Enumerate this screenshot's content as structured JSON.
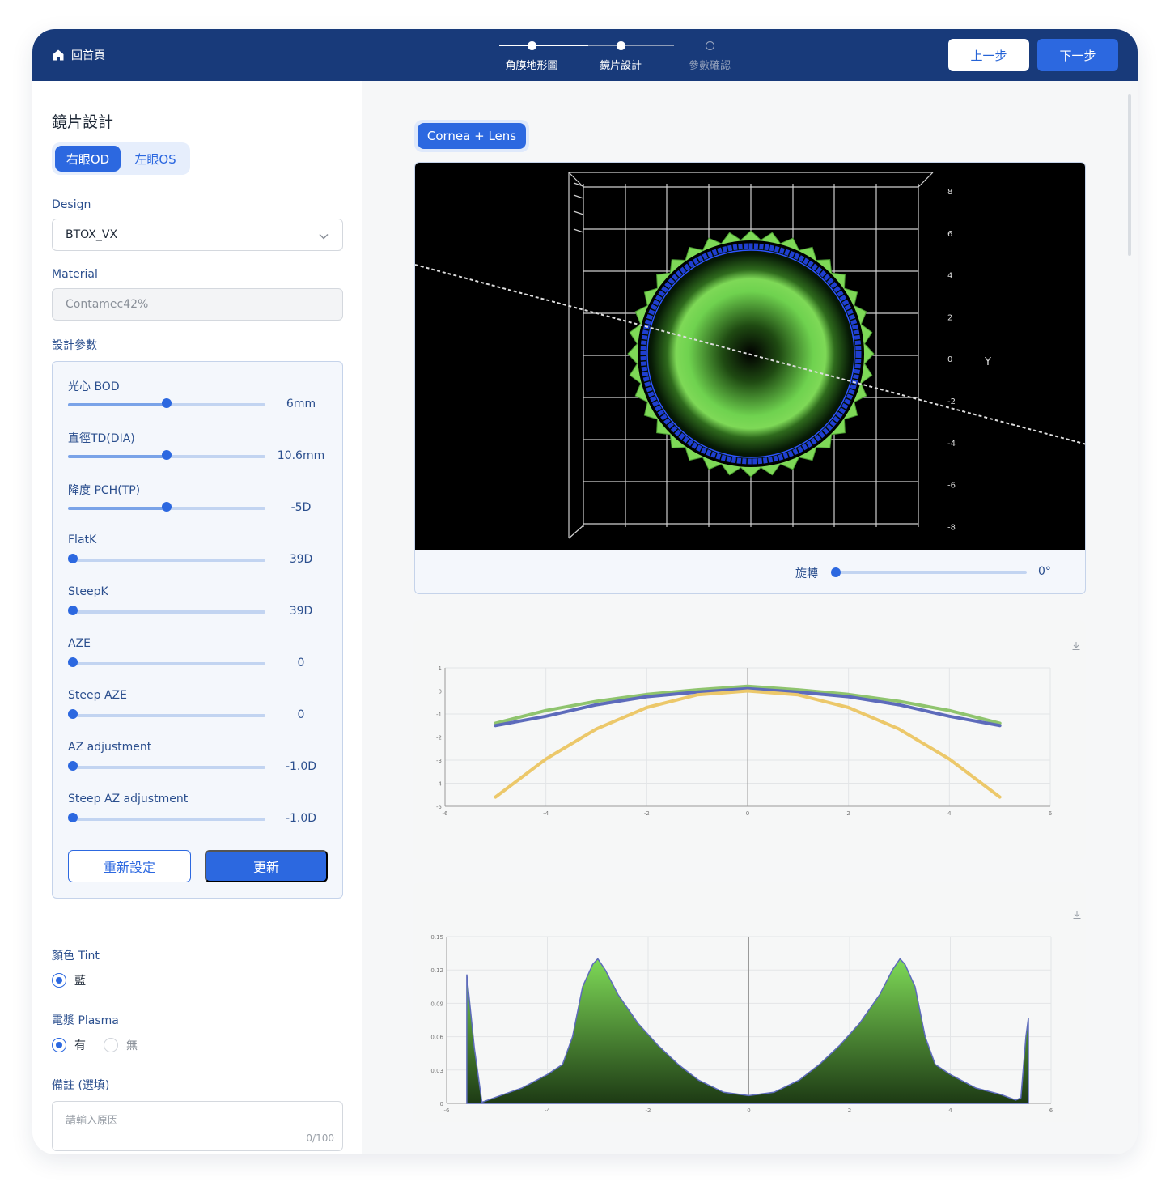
{
  "header": {
    "home_label": "回首頁",
    "steps": [
      {
        "label": "角膜地形圖",
        "state": "done"
      },
      {
        "label": "鏡片設計",
        "state": "current"
      },
      {
        "label": "參數確認",
        "state": "todo"
      }
    ],
    "prev_label": "上一步",
    "next_label": "下一步"
  },
  "left": {
    "title": "鏡片設計",
    "eye_tabs": [
      {
        "label": "右眼OD",
        "active": true
      },
      {
        "label": "左眼OS",
        "active": false
      }
    ],
    "design_label": "Design",
    "design_value": "BTOX_VX",
    "material_label": "Material",
    "material_value": "Contamec42%",
    "params_label": "設計參數",
    "params": [
      {
        "name": "光心 BOD",
        "value": "6mm",
        "fraction": 0.5
      },
      {
        "name": "直徑TD(DIA)",
        "value": "10.6mm",
        "fraction": 0.5
      },
      {
        "name": "降度 PCH(TP)",
        "value": "-5D",
        "fraction": 0.5
      },
      {
        "name": "FlatK",
        "value": "39D",
        "fraction": 0.0
      },
      {
        "name": "SteepK",
        "value": "39D",
        "fraction": 0.0
      },
      {
        "name": "AZE",
        "value": "0",
        "fraction": 0.0
      },
      {
        "name": "Steep AZE",
        "value": "0",
        "fraction": 0.0
      },
      {
        "name": "AZ adjustment",
        "value": "-1.0D",
        "fraction": 0.0
      },
      {
        "name": "Steep AZ adjustment",
        "value": "-1.0D",
        "fraction": 0.0
      }
    ],
    "reset_label": "重新設定",
    "update_label": "更新",
    "tint_label": "顏色 Tint",
    "tint_option": "藍",
    "plasma_label": "電漿 Plasma",
    "plasma_yes": "有",
    "plasma_no": "無",
    "notes_label": "備註 (選填)",
    "notes_placeholder": "請輸入原因",
    "notes_count": "0/100"
  },
  "viewer": {
    "tab_label": "Cornea + Lens",
    "y_axis_label": "Y",
    "y_ticks": [
      "8",
      "6",
      "4",
      "2",
      "0",
      "-2",
      "-4",
      "-6",
      "-8"
    ],
    "rotate_label": "旋轉",
    "rotate_value": "0°",
    "rotate_fraction": 0.0
  },
  "colors": {
    "navy": "#183a7a",
    "primary": "#2c68e0",
    "lens_green": "#7ed957",
    "lens_blue": "#1f3fd0",
    "series_green": "#8fc46e",
    "series_blue": "#5d6bbb",
    "series_yellow": "#ecc86a"
  },
  "chart_data": [
    {
      "type": "line",
      "xlim": [
        -6,
        6
      ],
      "ylim": [
        -5,
        1
      ],
      "x_ticks": [
        "-6",
        "-4",
        "-2",
        "0",
        "2",
        "4",
        "6"
      ],
      "y_ticks": [
        "1",
        "0",
        "-1",
        "-2",
        "-3",
        "-4",
        "-5"
      ],
      "series": [
        {
          "color": "#8fc46e",
          "x": [
            -5,
            -4,
            -3,
            -2,
            -1,
            0,
            1,
            2,
            3,
            4,
            5
          ],
          "y": [
            -1.4,
            -0.85,
            -0.45,
            -0.15,
            0.05,
            0.2,
            0.05,
            -0.15,
            -0.45,
            -0.85,
            -1.4
          ]
        },
        {
          "color": "#5d6bbb",
          "x": [
            -5,
            -4,
            -3,
            -2,
            -1,
            0,
            1,
            2,
            3,
            4,
            5
          ],
          "y": [
            -1.5,
            -1.1,
            -0.6,
            -0.25,
            -0.05,
            0.1,
            -0.05,
            -0.25,
            -0.6,
            -1.1,
            -1.5
          ]
        },
        {
          "color": "#ecc86a",
          "x": [
            -5,
            -4,
            -3,
            -2,
            -1,
            0,
            1,
            2,
            3,
            4,
            5
          ],
          "y": [
            -4.6,
            -2.95,
            -1.65,
            -0.72,
            -0.17,
            0.0,
            -0.17,
            -0.72,
            -1.65,
            -2.95,
            -4.6
          ]
        }
      ]
    },
    {
      "type": "area",
      "xlim": [
        -6,
        6
      ],
      "ylim": [
        0,
        0.15
      ],
      "x_ticks": [
        "-6",
        "-4",
        "-2",
        "0",
        "2",
        "4",
        "6"
      ],
      "y_ticks": [
        "0.15",
        "0.12",
        "0.09",
        "0.06",
        "0.03",
        "0"
      ],
      "series": [
        {
          "color": "#7ed957",
          "x": [
            -5.6,
            -5.45,
            -5.3,
            -5.0,
            -4.5,
            -4.0,
            -3.7,
            -3.5,
            -3.3,
            -3.1,
            -3.0,
            -2.85,
            -2.6,
            -2.2,
            -1.8,
            -1.4,
            -1.0,
            -0.5,
            0.0,
            0.5,
            1.0,
            1.4,
            1.8,
            2.2,
            2.6,
            2.85,
            3.0,
            3.1,
            3.3,
            3.5,
            3.7,
            4.0,
            4.5,
            5.0,
            5.3,
            5.4,
            5.5,
            5.55
          ],
          "y": [
            0.116,
            0.05,
            0.001,
            0.006,
            0.014,
            0.026,
            0.035,
            0.06,
            0.105,
            0.125,
            0.13,
            0.12,
            0.098,
            0.072,
            0.052,
            0.035,
            0.021,
            0.01,
            0.007,
            0.01,
            0.021,
            0.035,
            0.052,
            0.072,
            0.098,
            0.12,
            0.13,
            0.125,
            0.105,
            0.06,
            0.035,
            0.026,
            0.014,
            0.008,
            0.003,
            0.005,
            0.06,
            0.077
          ]
        }
      ]
    }
  ]
}
